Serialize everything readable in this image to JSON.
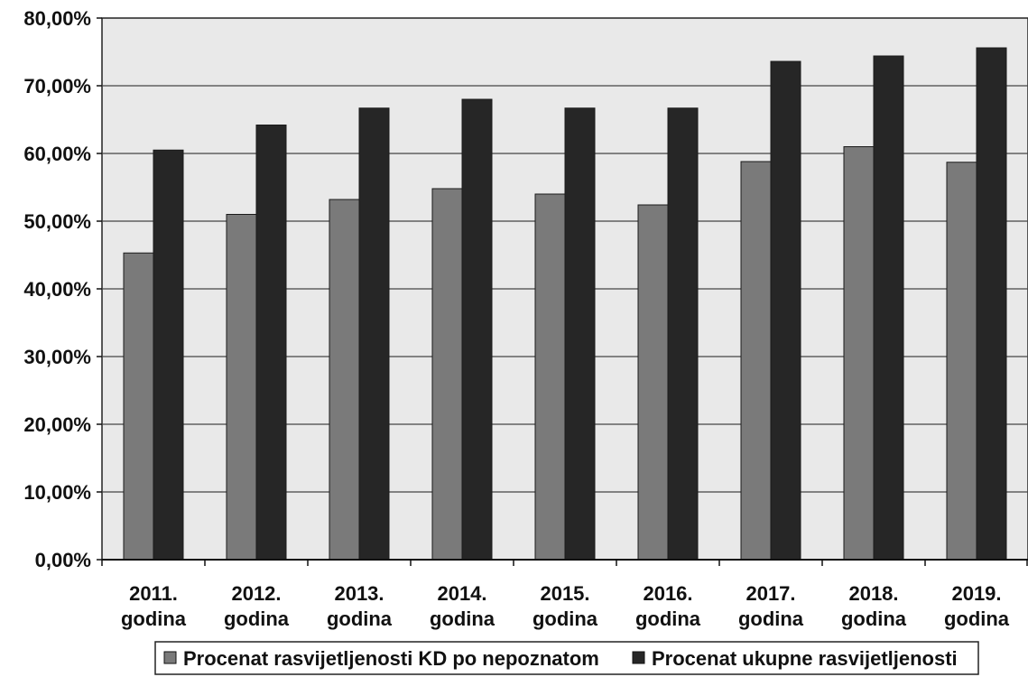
{
  "chart_data": {
    "type": "bar",
    "categories": [
      [
        "2011.",
        "godina"
      ],
      [
        "2012.",
        "godina"
      ],
      [
        "2013.",
        "godina"
      ],
      [
        "2014.",
        "godina"
      ],
      [
        "2015.",
        "godina"
      ],
      [
        "2016.",
        "godina"
      ],
      [
        "2017.",
        "godina"
      ],
      [
        "2018.",
        "godina"
      ],
      [
        "2019.",
        "godina"
      ]
    ],
    "series": [
      {
        "name": "Procenat rasvijetljenosti KD po nepoznatom",
        "color": "#7a7a7a",
        "values": [
          45.3,
          51.0,
          53.2,
          54.8,
          54.0,
          52.4,
          58.8,
          61.0,
          58.7
        ]
      },
      {
        "name": "Procenat ukupne rasvijetljenosti",
        "color": "#262626",
        "values": [
          60.5,
          64.2,
          66.7,
          68.0,
          66.7,
          66.7,
          73.6,
          74.4,
          75.6
        ]
      }
    ],
    "ylim": [
      0,
      80
    ],
    "yticks": [
      "0,00%",
      "10,00%",
      "20,00%",
      "30,00%",
      "40,00%",
      "50,00%",
      "60,00%",
      "70,00%",
      "80,00%"
    ],
    "grid": true,
    "legend_position": "bottom"
  }
}
